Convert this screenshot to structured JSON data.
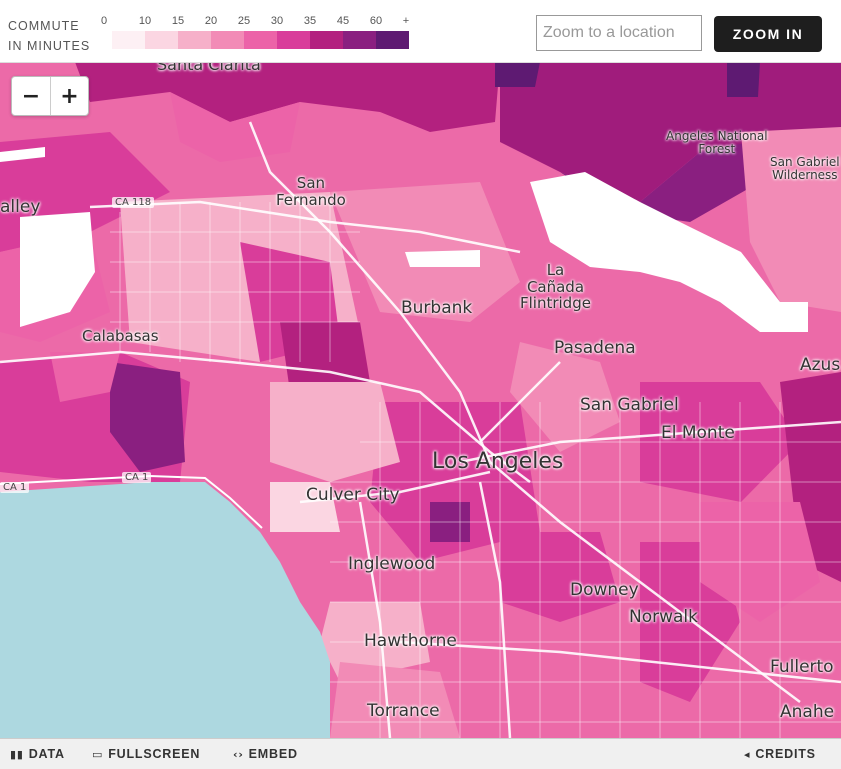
{
  "legend": {
    "title_line1": "COMMUTE",
    "title_line2": "IN MINUTES",
    "ticks": [
      "0",
      "10",
      "15",
      "20",
      "25",
      "30",
      "35",
      "45",
      "60",
      "+"
    ],
    "colors": [
      "#fdf0f4",
      "#fbd6e2",
      "#f6b0c9",
      "#f28bb6",
      "#ec63a8",
      "#d93d9a",
      "#b3217f",
      "#8a1f80",
      "#5e1a72"
    ]
  },
  "search": {
    "placeholder": "Zoom to a location",
    "value": ""
  },
  "zoom_button": "ZOOM IN",
  "zoom_controls": {
    "minus": "−",
    "plus": "+"
  },
  "places": {
    "santa_clarita": "Santa Clarita",
    "angeles_forest": "Angeles National\nForest",
    "san_gabriel_wild": "San Gabriel\nWilderness",
    "valley": "alley",
    "san_fernando": "San\nFernando",
    "la_canada": "La\nCañada\nFlintridge",
    "burbank": "Burbank",
    "calabasas": "Calabasas",
    "pasadena": "Pasadena",
    "azusa": "Azus",
    "san_gabriel": "San Gabriel",
    "el_monte": "El Monte",
    "los_angeles": "Los Angeles",
    "culver_city": "Culver City",
    "inglewood": "Inglewood",
    "downey": "Downey",
    "norwalk": "Norwalk",
    "hawthorne": "Hawthorne",
    "fullerton": "Fullerto",
    "torrance": "Torrance",
    "anaheim": "Anahe"
  },
  "highways": {
    "ca118": "CA 118",
    "ca1_left": "CA 1",
    "ca1": "CA 1"
  },
  "footer": {
    "data": "DATA",
    "fullscreen": "FULLSCREEN",
    "embed": "EMBED",
    "credits": "CREDITS"
  }
}
